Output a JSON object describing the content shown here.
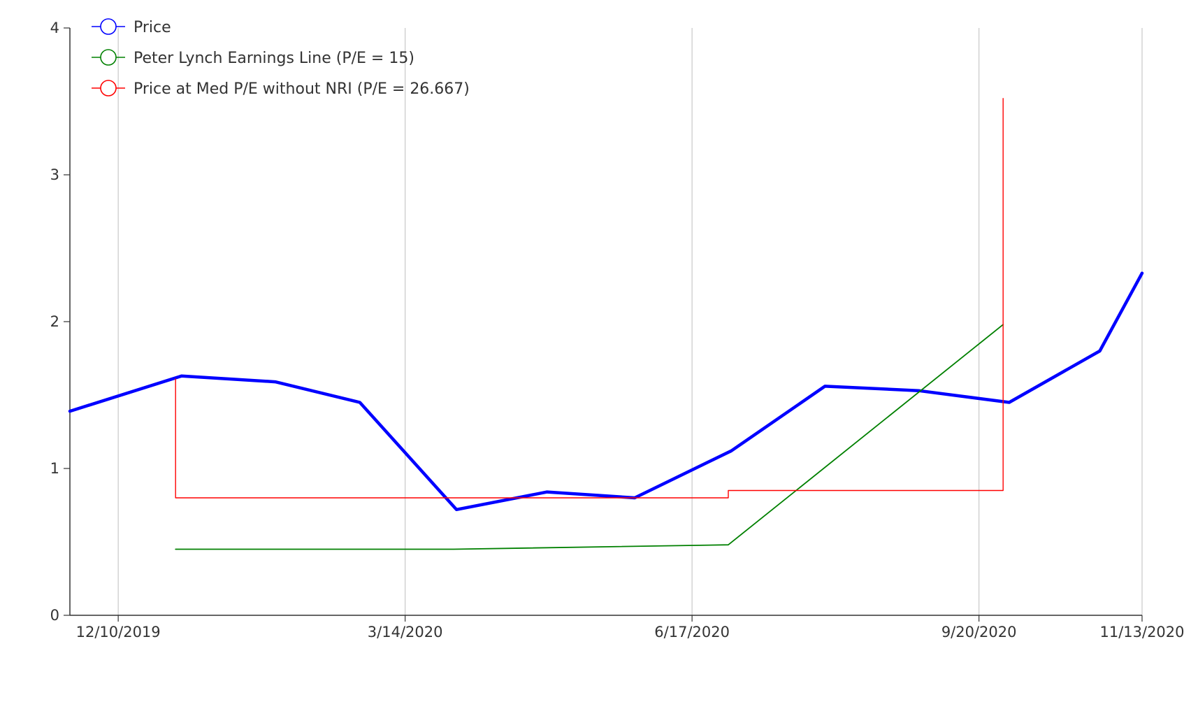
{
  "chart_data": {
    "type": "line",
    "title": "",
    "xlabel": "",
    "ylabel": "",
    "ylim": [
      0,
      4
    ],
    "yticks": [
      "0",
      "1",
      "2",
      "3",
      "4"
    ],
    "xlim": [
      "2019-11-24",
      "2020-11-13"
    ],
    "xticks": [
      {
        "date": "2019-12-10",
        "label": "12/10/2019"
      },
      {
        "date": "2020-03-14",
        "label": "3/14/2020"
      },
      {
        "date": "2020-06-17",
        "label": "6/17/2020"
      },
      {
        "date": "2020-09-20",
        "label": "9/20/2020"
      },
      {
        "date": "2020-11-13",
        "label": "11/13/2020"
      }
    ],
    "grid": {
      "vertical": true,
      "horizontal": false
    },
    "legend_position": "top-left",
    "series": [
      {
        "name": "Price",
        "color": "#0000ff",
        "step": false,
        "points": [
          {
            "x": "2019-11-24",
            "y": 1.39
          },
          {
            "x": "2019-12-31",
            "y": 1.63
          },
          {
            "x": "2020-01-31",
            "y": 1.59
          },
          {
            "x": "2020-02-28",
            "y": 1.45
          },
          {
            "x": "2020-03-31",
            "y": 0.72
          },
          {
            "x": "2020-04-30",
            "y": 0.84
          },
          {
            "x": "2020-05-29",
            "y": 0.8
          },
          {
            "x": "2020-06-30",
            "y": 1.12
          },
          {
            "x": "2020-07-31",
            "y": 1.56
          },
          {
            "x": "2020-08-31",
            "y": 1.53
          },
          {
            "x": "2020-09-30",
            "y": 1.45
          },
          {
            "x": "2020-10-30",
            "y": 1.8
          },
          {
            "x": "2020-11-13",
            "y": 2.33
          }
        ]
      },
      {
        "name": "Peter Lynch Earnings Line (P/E = 15)",
        "color": "#008000",
        "step": false,
        "points": [
          {
            "x": "2019-12-29",
            "y": 0.45
          },
          {
            "x": "2020-03-30",
            "y": 0.45
          },
          {
            "x": "2020-06-29",
            "y": 0.48
          },
          {
            "x": "2020-09-28",
            "y": 1.98
          }
        ]
      },
      {
        "name": "Price at Med P/E without NRI (P/E = 26.667)",
        "color": "#ff0000",
        "step": true,
        "points": [
          {
            "x": "2019-12-29",
            "y": 1.61
          },
          {
            "x": "2019-12-29",
            "y": 0.8
          },
          {
            "x": "2020-06-29",
            "y": 0.8
          },
          {
            "x": "2020-06-29",
            "y": 0.85
          },
          {
            "x": "2020-09-28",
            "y": 0.85
          },
          {
            "x": "2020-09-28",
            "y": 3.52
          }
        ]
      }
    ]
  }
}
